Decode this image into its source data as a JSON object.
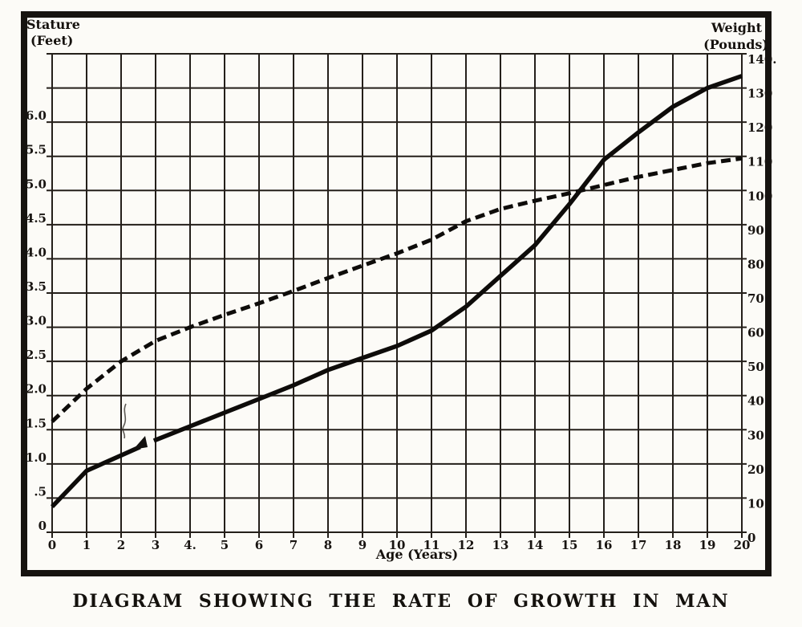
{
  "page": {
    "caption": "DIAGRAM SHOWING THE RATE OF GROWTH IN MAN"
  },
  "chart_data": {
    "type": "line",
    "title": "DIAGRAM SHOWING THE RATE OF GROWTH IN MAN",
    "xlabel": "Age (Years)",
    "xlim": [
      0,
      20
    ],
    "grid": true,
    "legend": "none",
    "x": [
      0,
      1,
      2,
      3,
      4,
      5,
      6,
      7,
      8,
      9,
      10,
      11,
      12,
      13,
      14,
      15,
      16,
      17,
      18,
      19,
      20
    ],
    "x_ticks": [
      "0",
      "1",
      "2",
      "3",
      "4.",
      "5",
      "6",
      "7",
      "8",
      "9",
      "10",
      "11",
      "12",
      "13",
      "14",
      "15",
      "16",
      "17",
      "18",
      "19",
      "20"
    ],
    "left_axis": {
      "title_line1": "Stature",
      "title_line2": "(Feet)",
      "range": [
        0,
        7
      ],
      "units_per_gridline": 0.5,
      "tick_labels": [
        "0",
        ".5",
        "1.0",
        "1.5",
        "2.0",
        "2.5",
        "3.0",
        "3.5",
        "4.0",
        "4.5",
        "5.0",
        "5.5",
        "6.0"
      ]
    },
    "right_axis": {
      "title_line1": "Weight",
      "title_line2": "(Pounds)",
      "range": [
        0,
        140
      ],
      "units_per_gridline": 10,
      "tick_labels": [
        "0",
        "10",
        "20",
        "30",
        "40",
        "50",
        "60",
        "70",
        "80",
        "90",
        "100",
        "110",
        "120",
        "130",
        "140."
      ]
    },
    "series": [
      {
        "name": "Stature (Feet)",
        "axis": "left",
        "style": "dashed",
        "values": [
          1.62,
          2.1,
          2.5,
          2.8,
          3.0,
          3.18,
          3.35,
          3.53,
          3.72,
          3.9,
          4.08,
          4.28,
          4.55,
          4.73,
          4.85,
          4.96,
          5.08,
          5.2,
          5.3,
          5.4,
          5.47
        ]
      },
      {
        "name": "Weight (Pounds)",
        "axis": "right",
        "style": "solid",
        "values": [
          7.5,
          18,
          22.5,
          27,
          31,
          35,
          39,
          43,
          47.5,
          51,
          54.5,
          59,
          66,
          75,
          84,
          96,
          109,
          117,
          124.5,
          130,
          133.5
        ],
        "print_break_x": [
          2.55,
          2.95
        ]
      }
    ],
    "notes": {
      "curves_cross_at": "age ~15.3 at 5.0 ft / 100 lb gridline",
      "ink_colors": {
        "ink": "#14110d",
        "grid": "#241f1a",
        "background": "#fcfbf7"
      }
    }
  }
}
